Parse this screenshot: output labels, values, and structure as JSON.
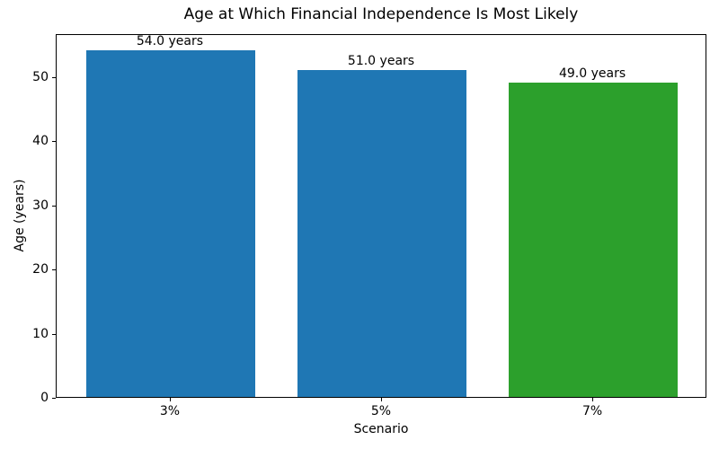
{
  "figure": {
    "background": "#ffffff"
  },
  "chart_data": {
    "type": "bar",
    "title": "Age at Which Financial Independence Is Most Likely",
    "xlabel": "Scenario",
    "ylabel": "Age (years)",
    "categories": [
      "3%",
      "5%",
      "7%"
    ],
    "values": [
      54.0,
      51.0,
      49.0
    ],
    "bar_labels": [
      "54.0 years",
      "51.0 years",
      "49.0 years"
    ],
    "bar_colors": [
      "#1f77b4",
      "#1f77b4",
      "#2ca02c"
    ],
    "yticks": [
      0,
      10,
      20,
      30,
      40,
      50
    ],
    "ylim": [
      0,
      56.7
    ],
    "xlim": [
      -0.54,
      2.54
    ],
    "bar_width": 0.8,
    "grid": false,
    "legend_position": "none",
    "tick_color": "#000000",
    "spine_color": "#000000",
    "text_color": "#000000"
  }
}
